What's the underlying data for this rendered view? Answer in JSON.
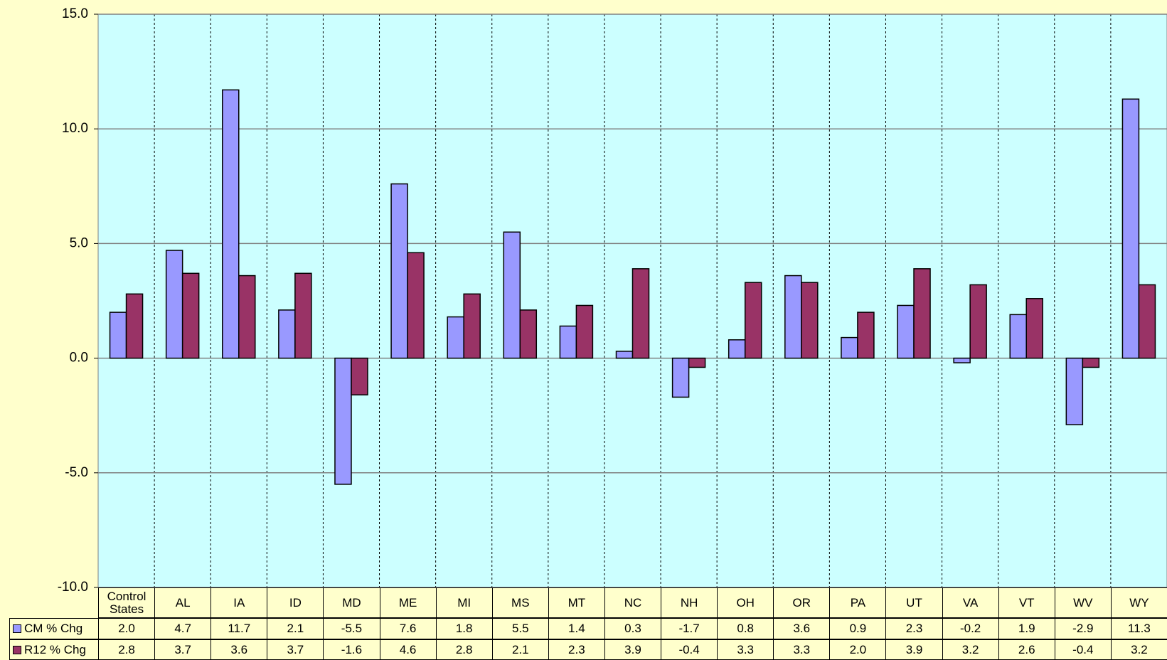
{
  "chart_data": {
    "type": "bar",
    "categories": [
      "Control States",
      "AL",
      "IA",
      "ID",
      "MD",
      "ME",
      "MI",
      "MS",
      "MT",
      "NC",
      "NH",
      "OH",
      "OR",
      "PA",
      "UT",
      "VA",
      "VT",
      "WV",
      "WY"
    ],
    "series": [
      {
        "name": "CM % Chg",
        "color": "#9999ff",
        "values": [
          2.0,
          4.7,
          11.7,
          2.1,
          -5.5,
          7.6,
          1.8,
          5.5,
          1.4,
          0.3,
          -1.7,
          0.8,
          3.6,
          0.9,
          2.3,
          -0.2,
          1.9,
          -2.9,
          11.3
        ],
        "value_labels": [
          "2.0",
          "4.7",
          "11.7",
          "2.1",
          "-5.5",
          "7.6",
          "1.8",
          "5.5",
          "1.4",
          "0.3",
          "-1.7",
          "0.8",
          "3.6",
          "0.9",
          "2.3",
          "-0.2",
          "1.9",
          "-2.9",
          "11.3"
        ]
      },
      {
        "name": "R12 % Chg",
        "color": "#993366",
        "values": [
          2.8,
          3.7,
          3.6,
          3.7,
          -1.6,
          4.6,
          2.8,
          2.1,
          2.3,
          3.9,
          -0.4,
          3.3,
          3.3,
          2.0,
          3.9,
          3.2,
          2.6,
          -0.4,
          3.2
        ],
        "value_labels": [
          "2.8",
          "3.7",
          "3.6",
          "3.7",
          "-1.6",
          "4.6",
          "2.8",
          "2.1",
          "2.3",
          "3.9",
          "-0.4",
          "3.3",
          "3.3",
          "2.0",
          "3.9",
          "3.2",
          "2.6",
          "-0.4",
          "3.2"
        ]
      }
    ],
    "ylim": [
      -10,
      15
    ],
    "yticks": [
      {
        "value": -10,
        "label": "-10.0"
      },
      {
        "value": -5,
        "label": "-5.0"
      },
      {
        "value": 0,
        "label": "0.0"
      },
      {
        "value": 5,
        "label": "5.0"
      },
      {
        "value": 10,
        "label": "10.0"
      },
      {
        "value": 15,
        "label": "15.0"
      }
    ],
    "grid": true
  }
}
